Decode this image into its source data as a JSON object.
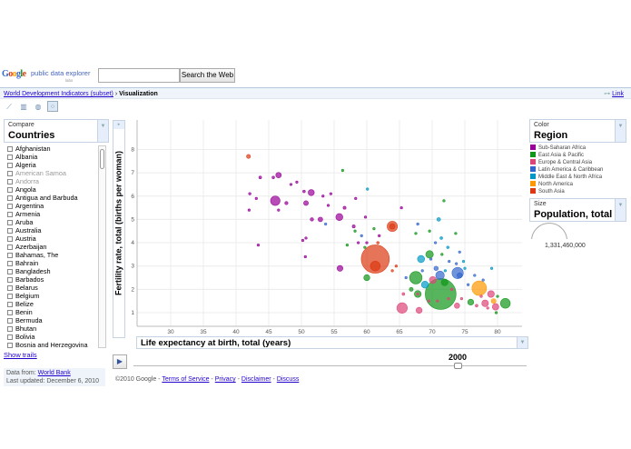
{
  "header": {
    "logo": "Google",
    "product": "public data explorer",
    "labs": "labs",
    "search_placeholder": "",
    "search_button": "Search the Web"
  },
  "breadcrumb": {
    "dataset": "World Development Indicators (subset)",
    "separator": "›",
    "current": "Visualization",
    "link": "Link"
  },
  "views": [
    "line-chart-icon",
    "bar-chart-icon",
    "map-icon",
    "bubble-chart-icon"
  ],
  "compare": {
    "caption": "Compare",
    "value": "Countries"
  },
  "countries": [
    {
      "name": "Afghanistan"
    },
    {
      "name": "Albania"
    },
    {
      "name": "Algeria"
    },
    {
      "name": "American Samoa",
      "disabled": true
    },
    {
      "name": "Andorra",
      "disabled": true
    },
    {
      "name": "Angola"
    },
    {
      "name": "Antigua and Barbuda"
    },
    {
      "name": "Argentina"
    },
    {
      "name": "Armenia"
    },
    {
      "name": "Aruba"
    },
    {
      "name": "Australia"
    },
    {
      "name": "Austria"
    },
    {
      "name": "Azerbaijan"
    },
    {
      "name": "Bahamas, The"
    },
    {
      "name": "Bahrain"
    },
    {
      "name": "Bangladesh"
    },
    {
      "name": "Barbados"
    },
    {
      "name": "Belarus"
    },
    {
      "name": "Belgium"
    },
    {
      "name": "Belize"
    },
    {
      "name": "Benin"
    },
    {
      "name": "Bermuda"
    },
    {
      "name": "Bhutan"
    },
    {
      "name": "Bolivia"
    },
    {
      "name": "Bosnia and Herzegovina"
    }
  ],
  "show_trails": "Show trails",
  "data_source": {
    "label": "Data from:",
    "source": "World Bank",
    "updated": "Last updated: December 6, 2010"
  },
  "year": "2000",
  "footer": {
    "copyright": "©2010 Google -",
    "links": [
      "Terms of Service",
      "Privacy",
      "Disclaimer",
      "Discuss"
    ]
  },
  "color": {
    "caption": "Color",
    "value": "Region"
  },
  "size": {
    "caption": "Size",
    "value": "Population, total",
    "legend_value": "1,331,460,000"
  },
  "chart_data": {
    "type": "scatter",
    "xlabel": "Life expectancy at birth, total (years)",
    "ylabel": "Fertility rate, total (births per woman)",
    "xlim": [
      23.5,
      84
    ],
    "ylim": [
      0.4,
      8.9
    ],
    "xticks": [
      30,
      35,
      40,
      45,
      50,
      55,
      60,
      65,
      70,
      75,
      80
    ],
    "yticks": [
      1,
      2,
      3,
      4,
      5,
      6,
      7,
      8
    ],
    "grid": true,
    "legend": [
      {
        "name": "Sub-Saharan Africa",
        "color": "#990099"
      },
      {
        "name": "East Asia & Pacific",
        "color": "#109618"
      },
      {
        "name": "Europe & Central Asia",
        "color": "#dd4477"
      },
      {
        "name": "Latin America & Caribbean",
        "color": "#3366cc"
      },
      {
        "name": "Middle East & North Africa",
        "color": "#0099c6"
      },
      {
        "name": "North America",
        "color": "#ff9900"
      },
      {
        "name": "South Asia",
        "color": "#dc3912"
      }
    ],
    "points_columns": [
      "life_expectancy",
      "fertility",
      "region_index",
      "population"
    ],
    "points": [
      [
        61.3,
        3.3,
        6,
        1050000000
      ],
      [
        71.3,
        1.8,
        1,
        1260000000
      ],
      [
        77.2,
        2.05,
        5,
        282000000
      ],
      [
        67.5,
        2.5,
        1,
        206000000
      ],
      [
        63.9,
        4.7,
        6,
        140000000
      ],
      [
        61.3,
        3.0,
        6,
        130000000
      ],
      [
        46.0,
        5.8,
        0,
        120000000
      ],
      [
        65.4,
        1.2,
        2,
        146000000
      ],
      [
        81.2,
        1.4,
        1,
        127000000
      ],
      [
        55.8,
        5.1,
        0,
        66000000
      ],
      [
        69.6,
        3.5,
        1,
        76000000
      ],
      [
        68.3,
        3.3,
        4,
        68000000
      ],
      [
        73.9,
        2.7,
        3,
        170000000
      ],
      [
        71.2,
        2.6,
        3,
        98000000
      ],
      [
        70.1,
        2.4,
        2,
        64000000
      ],
      [
        68.9,
        2.2,
        4,
        66000000
      ],
      [
        71.9,
        2.3,
        1,
        60000000
      ],
      [
        67.8,
        1.8,
        1,
        62000000
      ],
      [
        68.0,
        1.1,
        2,
        49000000
      ],
      [
        55.9,
        2.9,
        0,
        45000000
      ],
      [
        60.0,
        2.5,
        1,
        48000000
      ],
      [
        51.5,
        6.15,
        0,
        50000000
      ],
      [
        46.5,
        6.9,
        0,
        40000000
      ],
      [
        79.4,
        1.5,
        5,
        31000000
      ],
      [
        78.1,
        1.4,
        2,
        59000000
      ],
      [
        79.7,
        1.25,
        2,
        57000000
      ],
      [
        75.9,
        1.45,
        1,
        47000000
      ],
      [
        79.0,
        1.8,
        2,
        60000000
      ],
      [
        73.8,
        1.3,
        2,
        38000000
      ],
      [
        63.9,
        4.7,
        6,
        40000000
      ],
      [
        50.7,
        5.7,
        0,
        30000000
      ],
      [
        52.9,
        5.0,
        0,
        28000000
      ],
      [
        71.0,
        5.0,
        4,
        18000000
      ],
      [
        70.6,
        2.9,
        3,
        25000000
      ],
      [
        74.2,
        2.6,
        3,
        36000000
      ],
      [
        66.8,
        2.0,
        1,
        20000000
      ],
      [
        65.6,
        1.8,
        2,
        10000000
      ],
      [
        60.1,
        6.3,
        4,
        8000000
      ],
      [
        41.9,
        7.7,
        6,
        21000000
      ],
      [
        58.0,
        4.7,
        0,
        12000000
      ],
      [
        47.7,
        5.7,
        0,
        14000000
      ],
      [
        43.7,
        6.8,
        0,
        10000000
      ],
      [
        45.7,
        6.8,
        0,
        9000000
      ],
      [
        42.1,
        6.1,
        0,
        8000000
      ],
      [
        43.1,
        5.9,
        0,
        6000000
      ],
      [
        48.4,
        6.5,
        0,
        7000000
      ],
      [
        49.3,
        6.6,
        0,
        6000000
      ],
      [
        50.4,
        6.2,
        0,
        9000000
      ],
      [
        53.3,
        6.0,
        0,
        6000000
      ],
      [
        54.5,
        6.1,
        0,
        4000000
      ],
      [
        54.1,
        5.6,
        0,
        7000000
      ],
      [
        56.6,
        5.5,
        0,
        12000000
      ],
      [
        42.0,
        5.4,
        0,
        4000000
      ],
      [
        46.5,
        5.4,
        0,
        3000000
      ],
      [
        51.6,
        5.0,
        0,
        15000000
      ],
      [
        53.7,
        4.8,
        3,
        3000000
      ],
      [
        59.8,
        5.1,
        0,
        4000000
      ],
      [
        58.3,
        5.9,
        0,
        5000000
      ],
      [
        56.3,
        7.1,
        1,
        2000000
      ],
      [
        58.2,
        4.5,
        1,
        4000000
      ],
      [
        59.2,
        4.3,
        3,
        5000000
      ],
      [
        61.1,
        4.6,
        1,
        3000000
      ],
      [
        61.9,
        4.3,
        0,
        3000000
      ],
      [
        58.7,
        4.0,
        0,
        3000000
      ],
      [
        60.0,
        4.0,
        0,
        3000000
      ],
      [
        59.7,
        3.8,
        1,
        2000000
      ],
      [
        57.0,
        3.9,
        1,
        8000000
      ],
      [
        43.4,
        3.9,
        0,
        7000000
      ],
      [
        50.7,
        4.2,
        0,
        2000000
      ],
      [
        50.2,
        4.1,
        0,
        2000000
      ],
      [
        50.6,
        3.4,
        0,
        3000000
      ],
      [
        61.7,
        4.0,
        6,
        9000000
      ],
      [
        71.8,
        5.8,
        1,
        1000000
      ],
      [
        65.3,
        5.5,
        0,
        2000000
      ],
      [
        67.8,
        4.8,
        3,
        8000000
      ],
      [
        69.6,
        4.5,
        1,
        3000000
      ],
      [
        67.5,
        4.4,
        1,
        2000000
      ],
      [
        71.4,
        4.2,
        4,
        10000000
      ],
      [
        73.6,
        4.4,
        1,
        2000000
      ],
      [
        70.5,
        4.0,
        3,
        3000000
      ],
      [
        72.4,
        3.8,
        4,
        9000000
      ],
      [
        74.2,
        3.6,
        3,
        4000000
      ],
      [
        69.8,
        3.3,
        3,
        5000000
      ],
      [
        72.6,
        3.2,
        3,
        3000000
      ],
      [
        73.7,
        3.1,
        3,
        4000000
      ],
      [
        67.8,
        1.8,
        2,
        5000000
      ],
      [
        64.5,
        3.0,
        6,
        2000000
      ],
      [
        63.9,
        2.8,
        6,
        3000000
      ],
      [
        79.1,
        2.9,
        4,
        6000000
      ],
      [
        76.5,
        2.6,
        3,
        4000000
      ],
      [
        77.8,
        2.4,
        3,
        3000000
      ],
      [
        75.5,
        2.2,
        3,
        6000000
      ],
      [
        74.5,
        1.6,
        2,
        5000000
      ],
      [
        77.5,
        1.7,
        2,
        8000000
      ],
      [
        78.5,
        1.2,
        2,
        5000000
      ],
      [
        76.8,
        1.3,
        2,
        10000000
      ],
      [
        80.0,
        1.7,
        1,
        3000000
      ],
      [
        79.8,
        1.0,
        1,
        2000000
      ],
      [
        72.5,
        1.6,
        2,
        8000000
      ],
      [
        70.8,
        1.5,
        2,
        6000000
      ],
      [
        69.5,
        1.5,
        2,
        4000000
      ],
      [
        73.0,
        2.0,
        2,
        9000000
      ],
      [
        74.8,
        3.2,
        4,
        4000000
      ],
      [
        71.5,
        3.5,
        1,
        3000000
      ],
      [
        66.0,
        2.5,
        3,
        2000000
      ],
      [
        68.5,
        2.8,
        3,
        3000000
      ],
      [
        75.0,
        2.9,
        4,
        2000000
      ],
      [
        72.0,
        2.8,
        4,
        5000000
      ]
    ]
  }
}
